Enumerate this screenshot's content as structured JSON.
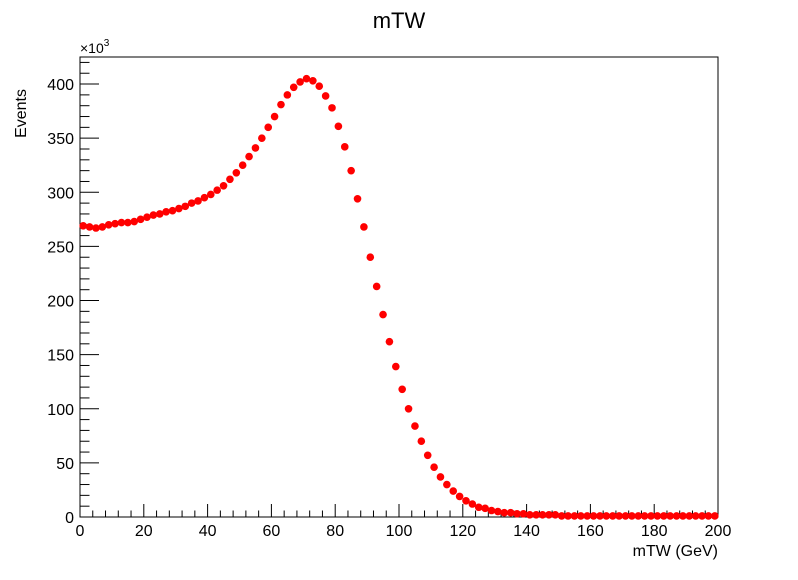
{
  "chart_data": {
    "type": "scatter",
    "title": "mTW",
    "xlabel": "mTW (GeV)",
    "ylabel": "Events",
    "y_multiplier_label": "×10",
    "y_multiplier_exponent": "3",
    "xlim": [
      0,
      200
    ],
    "ylim": [
      0,
      425
    ],
    "x_ticks": [
      0,
      20,
      40,
      60,
      80,
      100,
      120,
      140,
      160,
      180,
      200
    ],
    "y_ticks": [
      0,
      50,
      100,
      150,
      200,
      250,
      300,
      350,
      400
    ],
    "grid": false,
    "marker_color": "#ff0000",
    "series": [
      {
        "x": [
          1,
          3,
          5,
          7,
          9,
          11,
          13,
          15,
          17,
          19,
          21,
          23,
          25,
          27,
          29,
          31,
          33,
          35,
          37,
          39,
          41,
          43,
          45,
          47,
          49,
          51,
          53,
          55,
          57,
          59,
          61,
          63,
          65,
          67,
          69,
          71,
          73,
          75,
          77,
          79,
          81,
          83,
          85,
          87,
          89,
          91,
          93,
          95,
          97,
          99,
          101,
          103,
          105,
          107,
          109,
          111,
          113,
          115,
          117,
          119,
          121,
          123,
          125,
          127,
          129,
          131,
          133,
          135,
          137,
          139,
          141,
          143,
          145,
          147,
          149,
          151,
          153,
          155,
          157,
          159,
          161,
          163,
          165,
          167,
          169,
          171,
          173,
          175,
          177,
          179,
          181,
          183,
          185,
          187,
          189,
          191,
          193,
          195,
          197,
          199
        ],
        "y": [
          269,
          268,
          267,
          268,
          270,
          271,
          272,
          272,
          273,
          275,
          277,
          279,
          280,
          282,
          283,
          285,
          287,
          290,
          292,
          295,
          298,
          302,
          306,
          312,
          318,
          325,
          333,
          341,
          350,
          360,
          370,
          381,
          390,
          397,
          402,
          405,
          403,
          398,
          389,
          378,
          361,
          342,
          320,
          294,
          268,
          240,
          213,
          187,
          162,
          139,
          118,
          100,
          84,
          70,
          57,
          46,
          37,
          30,
          24,
          19,
          15,
          12,
          9,
          8,
          6,
          5,
          4,
          4,
          3,
          3,
          2,
          2,
          2,
          2,
          2,
          1,
          1,
          1,
          1,
          1,
          1,
          1,
          1,
          1,
          1,
          1,
          1,
          1,
          1,
          1,
          1,
          1,
          1,
          1,
          1,
          1,
          1,
          1,
          1,
          1
        ]
      }
    ]
  }
}
